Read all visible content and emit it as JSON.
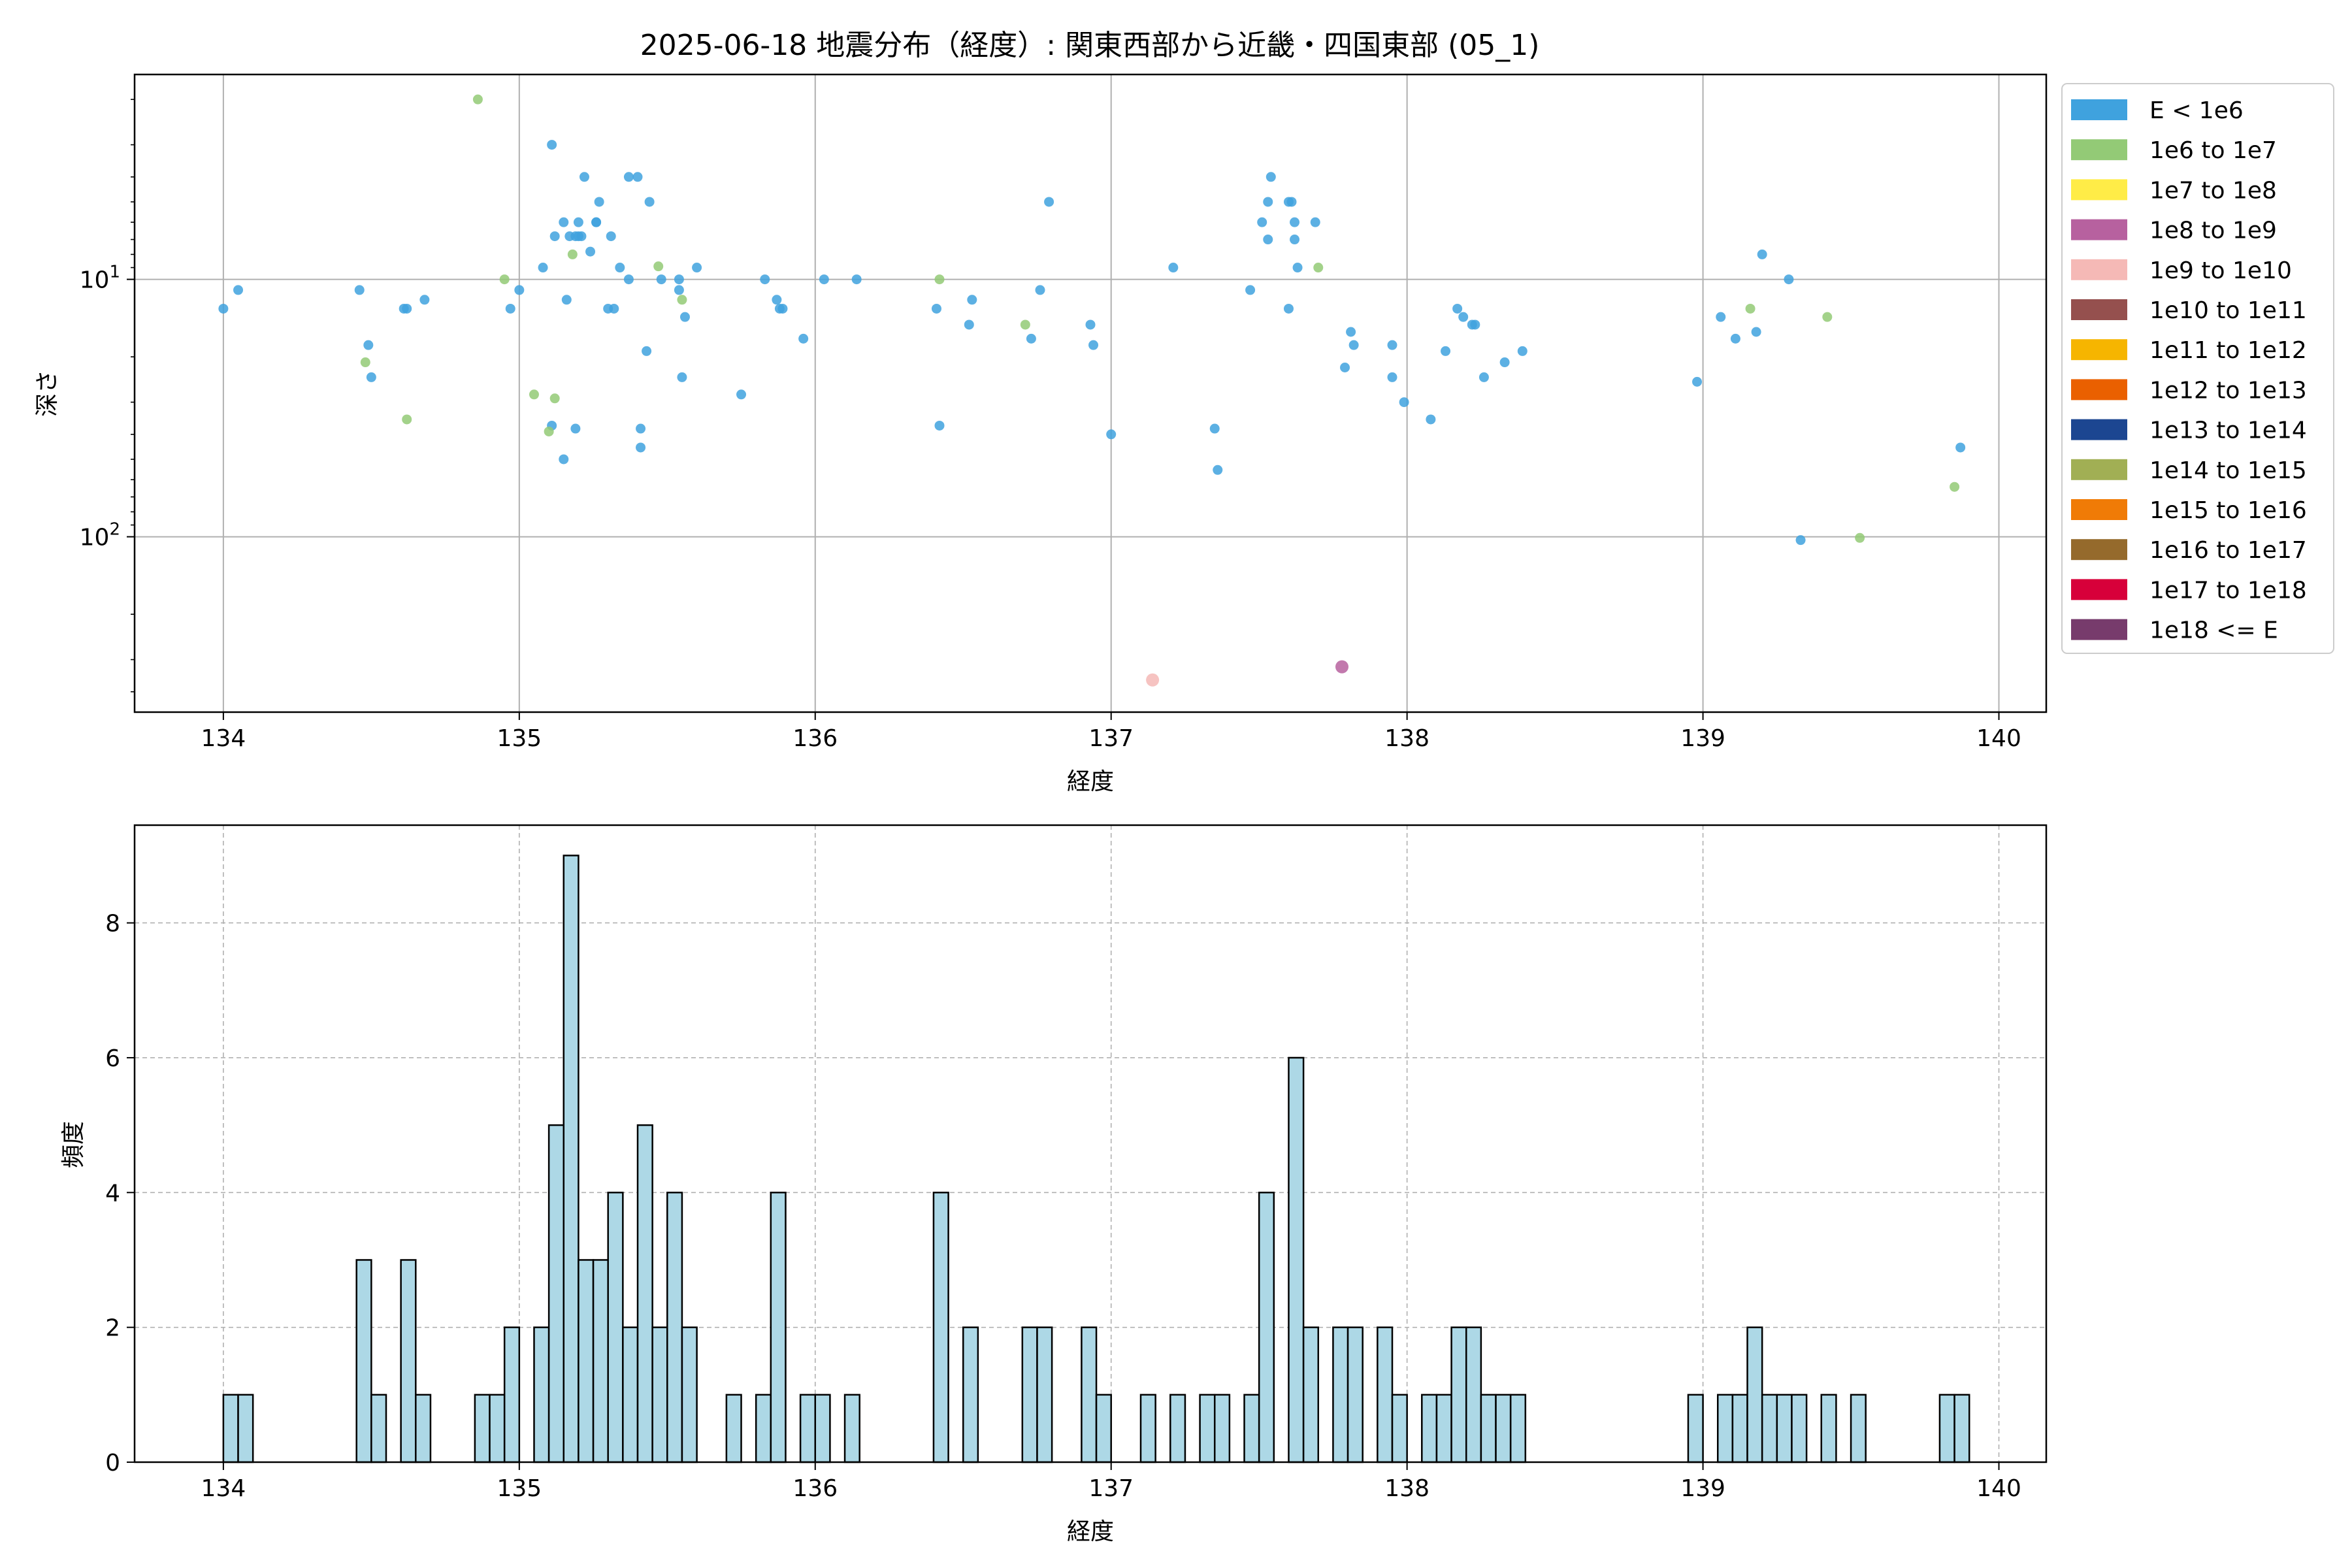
{
  "title": "2025-06-18 地震分布（経度）: 関東西部から近畿・四国東部 (05_1)",
  "chart_data": [
    {
      "type": "scatter",
      "xlabel": "経度",
      "ylabel": "深さ",
      "xlim": [
        133.7,
        140.16
      ],
      "ylim": [
        480,
        1.6
      ],
      "yscale": "log",
      "yinverted": true,
      "grid": true,
      "xticks": [
        "134",
        "135",
        "136",
        "137",
        "138",
        "139",
        "140"
      ],
      "yticks": [
        {
          "value": 10,
          "base": "10",
          "exp": "1"
        },
        {
          "value": 100,
          "base": "10",
          "exp": "2"
        }
      ],
      "legend_position": "outside-right",
      "legend": [
        {
          "label": "E < 1e6",
          "color": "#3fa2de"
        },
        {
          "label": "1e6 to 1e7",
          "color": "#93ca76"
        },
        {
          "label": "1e7 to 1e8",
          "color": "#ffec47"
        },
        {
          "label": "1e8 to 1e9",
          "color": "#b7619f"
        },
        {
          "label": "1e9 to 1e10",
          "color": "#f5b9b6"
        },
        {
          "label": "1e10 to 1e11",
          "color": "#95504e"
        },
        {
          "label": "1e11 to 1e12",
          "color": "#f6b500"
        },
        {
          "label": "1e12 to 1e13",
          "color": "#ea6000"
        },
        {
          "label": "1e13 to 1e14",
          "color": "#1c4691"
        },
        {
          "label": "1e14 to 1e15",
          "color": "#a1af54"
        },
        {
          "label": "1e15 to 1e16",
          "color": "#f07b06"
        },
        {
          "label": "1e16 to 1e17",
          "color": "#956a2c"
        },
        {
          "label": "1e17 to 1e18",
          "color": "#d7003a"
        },
        {
          "label": "1e18 <= E",
          "color": "#773b6c"
        }
      ],
      "points": [
        {
          "x": 134.0,
          "y": 13,
          "c": 0
        },
        {
          "x": 134.05,
          "y": 11,
          "c": 0
        },
        {
          "x": 134.46,
          "y": 11,
          "c": 0
        },
        {
          "x": 134.49,
          "y": 18,
          "c": 0
        },
        {
          "x": 134.5,
          "y": 24,
          "c": 0
        },
        {
          "x": 134.48,
          "y": 21,
          "c": 1
        },
        {
          "x": 134.61,
          "y": 13,
          "c": 0
        },
        {
          "x": 134.62,
          "y": 13,
          "c": 0
        },
        {
          "x": 134.68,
          "y": 12,
          "c": 0
        },
        {
          "x": 134.62,
          "y": 35,
          "c": 1
        },
        {
          "x": 134.86,
          "y": 2,
          "c": 1
        },
        {
          "x": 134.95,
          "y": 10,
          "c": 1
        },
        {
          "x": 134.97,
          "y": 13,
          "c": 0
        },
        {
          "x": 135.0,
          "y": 11,
          "c": 0
        },
        {
          "x": 135.05,
          "y": 28,
          "c": 1
        },
        {
          "x": 135.08,
          "y": 9,
          "c": 0
        },
        {
          "x": 135.11,
          "y": 3,
          "c": 0
        },
        {
          "x": 135.12,
          "y": 6.8,
          "c": 0
        },
        {
          "x": 135.15,
          "y": 6,
          "c": 0
        },
        {
          "x": 135.16,
          "y": 12,
          "c": 0
        },
        {
          "x": 135.17,
          "y": 6.8,
          "c": 0
        },
        {
          "x": 135.18,
          "y": 8,
          "c": 1
        },
        {
          "x": 135.19,
          "y": 6.8,
          "c": 0
        },
        {
          "x": 135.2,
          "y": 6,
          "c": 0
        },
        {
          "x": 135.2,
          "y": 6.8,
          "c": 0
        },
        {
          "x": 135.21,
          "y": 6.8,
          "c": 0
        },
        {
          "x": 135.22,
          "y": 4,
          "c": 0
        },
        {
          "x": 135.24,
          "y": 7.8,
          "c": 0
        },
        {
          "x": 135.26,
          "y": 6,
          "c": 0
        },
        {
          "x": 135.27,
          "y": 5,
          "c": 0
        },
        {
          "x": 135.26,
          "y": 6,
          "c": 0
        },
        {
          "x": 135.12,
          "y": 29,
          "c": 1
        },
        {
          "x": 135.11,
          "y": 37,
          "c": 0
        },
        {
          "x": 135.1,
          "y": 39,
          "c": 1
        },
        {
          "x": 135.19,
          "y": 38,
          "c": 0
        },
        {
          "x": 135.15,
          "y": 50,
          "c": 0
        },
        {
          "x": 135.3,
          "y": 13,
          "c": 0
        },
        {
          "x": 135.32,
          "y": 13,
          "c": 0
        },
        {
          "x": 135.31,
          "y": 6.8,
          "c": 0
        },
        {
          "x": 135.34,
          "y": 9,
          "c": 0
        },
        {
          "x": 135.37,
          "y": 10,
          "c": 0
        },
        {
          "x": 135.37,
          "y": 4,
          "c": 0
        },
        {
          "x": 135.4,
          "y": 4,
          "c": 0
        },
        {
          "x": 135.44,
          "y": 5,
          "c": 0
        },
        {
          "x": 135.43,
          "y": 19,
          "c": 0
        },
        {
          "x": 135.41,
          "y": 38,
          "c": 0
        },
        {
          "x": 135.41,
          "y": 45,
          "c": 0
        },
        {
          "x": 135.47,
          "y": 8.9,
          "c": 1
        },
        {
          "x": 135.48,
          "y": 10,
          "c": 0
        },
        {
          "x": 135.54,
          "y": 10,
          "c": 0
        },
        {
          "x": 135.54,
          "y": 11,
          "c": 0
        },
        {
          "x": 135.55,
          "y": 12,
          "c": 1
        },
        {
          "x": 135.56,
          "y": 14,
          "c": 0
        },
        {
          "x": 135.55,
          "y": 24,
          "c": 0
        },
        {
          "x": 135.6,
          "y": 9,
          "c": 0
        },
        {
          "x": 135.75,
          "y": 28,
          "c": 0
        },
        {
          "x": 135.83,
          "y": 10,
          "c": 0
        },
        {
          "x": 135.87,
          "y": 12,
          "c": 0
        },
        {
          "x": 135.88,
          "y": 13,
          "c": 0
        },
        {
          "x": 135.89,
          "y": 13,
          "c": 0
        },
        {
          "x": 135.96,
          "y": 17,
          "c": 0
        },
        {
          "x": 136.03,
          "y": 10,
          "c": 0
        },
        {
          "x": 136.14,
          "y": 10,
          "c": 0
        },
        {
          "x": 136.41,
          "y": 13,
          "c": 0
        },
        {
          "x": 136.42,
          "y": 10,
          "c": 1
        },
        {
          "x": 136.42,
          "y": 37,
          "c": 0
        },
        {
          "x": 136.52,
          "y": 15,
          "c": 0
        },
        {
          "x": 136.53,
          "y": 12,
          "c": 0
        },
        {
          "x": 136.71,
          "y": 15,
          "c": 1
        },
        {
          "x": 136.73,
          "y": 17,
          "c": 0
        },
        {
          "x": 136.76,
          "y": 11,
          "c": 0
        },
        {
          "x": 136.79,
          "y": 5,
          "c": 0
        },
        {
          "x": 136.93,
          "y": 15,
          "c": 0
        },
        {
          "x": 136.94,
          "y": 18,
          "c": 0
        },
        {
          "x": 137.0,
          "y": 40,
          "c": 0
        },
        {
          "x": 137.21,
          "y": 9,
          "c": 0
        },
        {
          "x": 137.14,
          "y": 360,
          "c": 4
        },
        {
          "x": 137.35,
          "y": 38,
          "c": 0
        },
        {
          "x": 137.36,
          "y": 55,
          "c": 0
        },
        {
          "x": 137.47,
          "y": 11,
          "c": 0
        },
        {
          "x": 137.51,
          "y": 6,
          "c": 0
        },
        {
          "x": 137.53,
          "y": 5,
          "c": 0
        },
        {
          "x": 137.54,
          "y": 4,
          "c": 0
        },
        {
          "x": 137.53,
          "y": 7,
          "c": 0
        },
        {
          "x": 137.6,
          "y": 5,
          "c": 0
        },
        {
          "x": 137.61,
          "y": 5,
          "c": 0
        },
        {
          "x": 137.62,
          "y": 6,
          "c": 0
        },
        {
          "x": 137.62,
          "y": 7,
          "c": 0
        },
        {
          "x": 137.63,
          "y": 9,
          "c": 0
        },
        {
          "x": 137.6,
          "y": 13,
          "c": 0
        },
        {
          "x": 137.69,
          "y": 6,
          "c": 0
        },
        {
          "x": 137.7,
          "y": 9,
          "c": 1
        },
        {
          "x": 137.79,
          "y": 22,
          "c": 0
        },
        {
          "x": 137.81,
          "y": 16,
          "c": 0
        },
        {
          "x": 137.82,
          "y": 18,
          "c": 0
        },
        {
          "x": 137.78,
          "y": 320,
          "c": 3
        },
        {
          "x": 137.95,
          "y": 18,
          "c": 0
        },
        {
          "x": 137.95,
          "y": 24,
          "c": 0
        },
        {
          "x": 137.99,
          "y": 30,
          "c": 0
        },
        {
          "x": 138.08,
          "y": 35,
          "c": 0
        },
        {
          "x": 138.13,
          "y": 19,
          "c": 0
        },
        {
          "x": 138.17,
          "y": 13,
          "c": 0
        },
        {
          "x": 138.19,
          "y": 14,
          "c": 0
        },
        {
          "x": 138.22,
          "y": 15,
          "c": 0
        },
        {
          "x": 138.23,
          "y": 15,
          "c": 0
        },
        {
          "x": 138.26,
          "y": 24,
          "c": 0
        },
        {
          "x": 138.33,
          "y": 21,
          "c": 0
        },
        {
          "x": 138.39,
          "y": 19,
          "c": 0
        },
        {
          "x": 138.98,
          "y": 25,
          "c": 0
        },
        {
          "x": 139.06,
          "y": 14,
          "c": 0
        },
        {
          "x": 139.11,
          "y": 17,
          "c": 0
        },
        {
          "x": 139.16,
          "y": 13,
          "c": 1
        },
        {
          "x": 139.18,
          "y": 16,
          "c": 0
        },
        {
          "x": 139.2,
          "y": 8,
          "c": 0
        },
        {
          "x": 139.29,
          "y": 10,
          "c": 0
        },
        {
          "x": 139.33,
          "y": 103,
          "c": 0
        },
        {
          "x": 139.42,
          "y": 14,
          "c": 1
        },
        {
          "x": 139.53,
          "y": 101,
          "c": 1
        },
        {
          "x": 139.85,
          "y": 64,
          "c": 1
        },
        {
          "x": 139.87,
          "y": 45,
          "c": 0
        }
      ]
    },
    {
      "type": "bar",
      "xlabel": "経度",
      "ylabel": "頻度",
      "xlim": [
        133.7,
        140.16
      ],
      "ylim": [
        0,
        9.45
      ],
      "grid": true,
      "xticks": [
        "134",
        "135",
        "136",
        "137",
        "138",
        "139",
        "140"
      ],
      "yticks": [
        "0",
        "2",
        "4",
        "6",
        "8"
      ],
      "bin_width": 0.05,
      "bins": [
        [
          134.0,
          1
        ],
        [
          134.05,
          1
        ],
        [
          134.45,
          3
        ],
        [
          134.5,
          1
        ],
        [
          134.6,
          3
        ],
        [
          134.65,
          1
        ],
        [
          134.85,
          1
        ],
        [
          134.9,
          1
        ],
        [
          134.95,
          2
        ],
        [
          135.05,
          2
        ],
        [
          135.1,
          5
        ],
        [
          135.15,
          9
        ],
        [
          135.2,
          3
        ],
        [
          135.25,
          3
        ],
        [
          135.3,
          4
        ],
        [
          135.35,
          2
        ],
        [
          135.4,
          5
        ],
        [
          135.45,
          2
        ],
        [
          135.5,
          4
        ],
        [
          135.55,
          2
        ],
        [
          135.7,
          1
        ],
        [
          135.8,
          1
        ],
        [
          135.85,
          4
        ],
        [
          135.95,
          1
        ],
        [
          136.0,
          1
        ],
        [
          136.1,
          1
        ],
        [
          136.4,
          4
        ],
        [
          136.5,
          2
        ],
        [
          136.7,
          2
        ],
        [
          136.75,
          2
        ],
        [
          136.9,
          2
        ],
        [
          136.95,
          1
        ],
        [
          137.1,
          1
        ],
        [
          137.2,
          1
        ],
        [
          137.3,
          1
        ],
        [
          137.35,
          1
        ],
        [
          137.45,
          1
        ],
        [
          137.5,
          4
        ],
        [
          137.6,
          6
        ],
        [
          137.65,
          2
        ],
        [
          137.75,
          2
        ],
        [
          137.8,
          2
        ],
        [
          137.9,
          2
        ],
        [
          137.95,
          1
        ],
        [
          138.05,
          1
        ],
        [
          138.1,
          1
        ],
        [
          138.15,
          2
        ],
        [
          138.2,
          2
        ],
        [
          138.25,
          1
        ],
        [
          138.3,
          1
        ],
        [
          138.35,
          1
        ],
        [
          138.95,
          1
        ],
        [
          139.05,
          1
        ],
        [
          139.1,
          1
        ],
        [
          139.15,
          2
        ],
        [
          139.2,
          1
        ],
        [
          139.25,
          1
        ],
        [
          139.3,
          1
        ],
        [
          139.4,
          1
        ],
        [
          139.5,
          1
        ],
        [
          139.8,
          1
        ],
        [
          139.85,
          1
        ]
      ],
      "bar_color": "#add8e6",
      "edge_color": "#000000"
    }
  ]
}
